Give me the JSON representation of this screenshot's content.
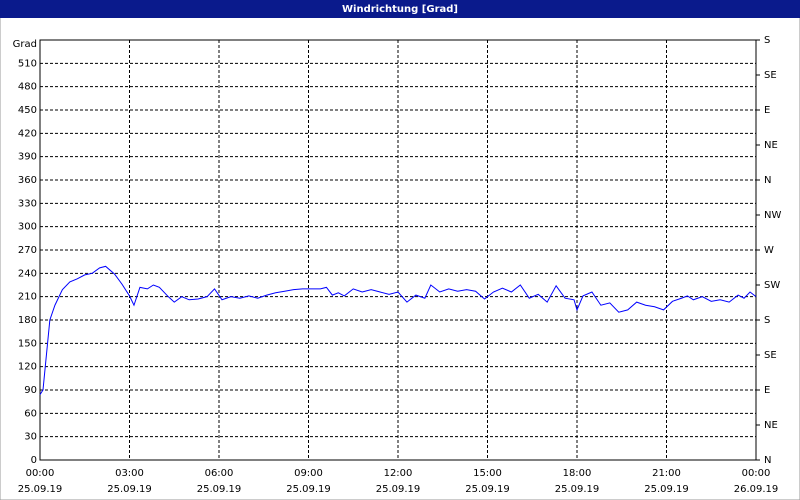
{
  "chart_data": {
    "type": "line",
    "title": "Windrichtung [Grad]",
    "y_label": "Grad",
    "x": [
      0,
      0.1,
      0.33,
      0.5,
      0.75,
      1.0,
      1.25,
      1.5,
      1.75,
      2.0,
      2.2,
      2.5,
      2.75,
      3.0,
      3.15,
      3.35,
      3.6,
      3.8,
      4.0,
      4.3,
      4.5,
      4.75,
      5.0,
      5.3,
      5.6,
      5.85,
      6.1,
      6.4,
      6.7,
      7.0,
      7.3,
      7.6,
      7.9,
      8.2,
      8.5,
      8.8,
      9.1,
      9.4,
      9.6,
      9.8,
      10.0,
      10.2,
      10.5,
      10.8,
      11.1,
      11.4,
      11.7,
      12.0,
      12.3,
      12.6,
      12.9,
      13.1,
      13.4,
      13.7,
      14.0,
      14.3,
      14.6,
      14.9,
      15.2,
      15.5,
      15.8,
      16.1,
      16.4,
      16.7,
      17.0,
      17.3,
      17.6,
      17.9,
      18.0,
      18.2,
      18.5,
      18.8,
      19.1,
      19.4,
      19.7,
      20.0,
      20.3,
      20.6,
      20.9,
      21.2,
      21.5,
      21.7,
      21.9,
      22.2,
      22.5,
      22.8,
      23.1,
      23.4,
      23.6,
      23.8,
      24.0
    ],
    "series": [
      {
        "name": "Windrichtung",
        "color": "#0000ff",
        "values": [
          84,
          90,
          180,
          199,
          219,
          229,
          233,
          238,
          240,
          247,
          249,
          239,
          226,
          211,
          199,
          222,
          220,
          225,
          222,
          210,
          203,
          210,
          206,
          207,
          210,
          220,
          206,
          210,
          208,
          211,
          208,
          212,
          215,
          217,
          219,
          220,
          220,
          220,
          222,
          212,
          215,
          211,
          220,
          216,
          219,
          216,
          213,
          216,
          203,
          212,
          208,
          225,
          216,
          220,
          217,
          219,
          217,
          207,
          216,
          221,
          216,
          225,
          208,
          213,
          203,
          224,
          208,
          206,
          193,
          211,
          216,
          199,
          202,
          190,
          193,
          203,
          199,
          197,
          193,
          204,
          208,
          211,
          206,
          210,
          204,
          206,
          203,
          212,
          208,
          216,
          210
        ]
      }
    ],
    "xlim": [
      0,
      24
    ],
    "xticks": [
      {
        "value": 0,
        "label": "00:00"
      },
      {
        "value": 3,
        "label": "03:00"
      },
      {
        "value": 6,
        "label": "06:00"
      },
      {
        "value": 9,
        "label": "09:00"
      },
      {
        "value": 12,
        "label": "12:00"
      },
      {
        "value": 15,
        "label": "15:00"
      },
      {
        "value": 18,
        "label": "18:00"
      },
      {
        "value": 21,
        "label": "21:00"
      },
      {
        "value": 24,
        "label": "00:00"
      }
    ],
    "xtick_dates": [
      "25.09.19",
      "25.09.19",
      "25.09.19",
      "25.09.19",
      "25.09.19",
      "25.09.19",
      "25.09.19",
      "25.09.19",
      "26.09.19"
    ],
    "ylim": [
      0,
      540
    ],
    "yticks": [
      0,
      30,
      60,
      90,
      120,
      150,
      180,
      210,
      240,
      270,
      300,
      330,
      360,
      390,
      420,
      450,
      480,
      510
    ],
    "y2lim": [
      0,
      540
    ],
    "y2ticks": [
      {
        "value": 0,
        "label": "N"
      },
      {
        "value": 45,
        "label": "NE"
      },
      {
        "value": 90,
        "label": "E"
      },
      {
        "value": 135,
        "label": "SE"
      },
      {
        "value": 180,
        "label": "S"
      },
      {
        "value": 225,
        "label": "SW"
      },
      {
        "value": 270,
        "label": "W"
      },
      {
        "value": 315,
        "label": "NW"
      },
      {
        "value": 360,
        "label": "N"
      },
      {
        "value": 405,
        "label": "NE"
      },
      {
        "value": 450,
        "label": "E"
      },
      {
        "value": 495,
        "label": "SE"
      },
      {
        "value": 540,
        "label": "S"
      }
    ],
    "grid": true
  }
}
